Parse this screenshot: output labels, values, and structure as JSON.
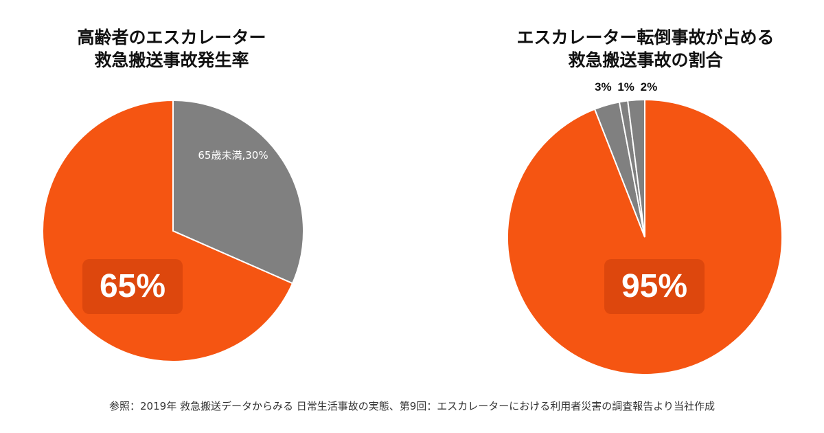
{
  "colors": {
    "orange": "#f55512",
    "gray": "#808080",
    "slice_border": "#ffffff"
  },
  "chart_data": [
    {
      "type": "pie",
      "title": "高齢者のエスカレーター\n救急搬送事故発生率",
      "slices": [
        {
          "label": "65歳未満,30%",
          "value": 30,
          "color": "#808080"
        },
        {
          "label": "",
          "value": 65,
          "color": "#f55512"
        }
      ],
      "center_label": "65%"
    },
    {
      "type": "pie",
      "title": "エスカレーター転倒事故が占める\n救急搬送事故の割合",
      "slices": [
        {
          "label": "95%",
          "value": 95,
          "color": "#f55512"
        },
        {
          "label": "3%",
          "value": 3,
          "color": "#808080"
        },
        {
          "label": "1%",
          "value": 1,
          "color": "#808080"
        },
        {
          "label": "2%",
          "value": 2,
          "color": "#808080"
        }
      ],
      "center_label": "95%",
      "small_labels": [
        "3%",
        "1%",
        "2%"
      ]
    }
  ],
  "footer": "参照：2019年 救急搬送データからみる 日常生活事故の実態、第9回：エスカレーターにおける利用者災害の調査報告より当社作成"
}
